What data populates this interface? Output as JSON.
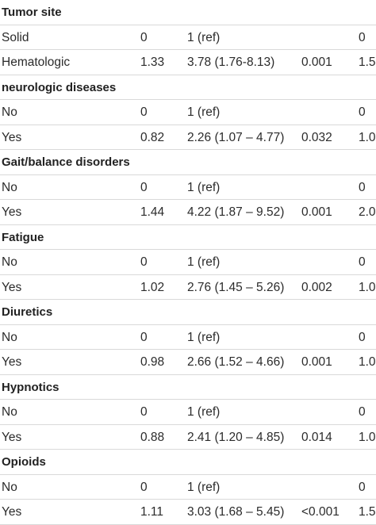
{
  "rows": [
    {
      "type": "header",
      "label": "Tumor site"
    },
    {
      "type": "data",
      "label": "Solid",
      "coef": "0",
      "or": "1 (ref)",
      "p": "",
      "extra": "0"
    },
    {
      "type": "data",
      "label": "Hematologic",
      "coef": "1.33",
      "or": "3.78 (1.76-8.13)",
      "p": "0.001",
      "extra": "1.5"
    },
    {
      "type": "header",
      "label": "neurologic diseases"
    },
    {
      "type": "data",
      "label": "No",
      "coef": "0",
      "or": "1 (ref)",
      "p": "",
      "extra": "0"
    },
    {
      "type": "data",
      "label": "Yes",
      "coef": "0.82",
      "or": "2.26 (1.07 – 4.77)",
      "p": "0.032",
      "extra": "1.0"
    },
    {
      "type": "header",
      "label": "Gait/balance disorders"
    },
    {
      "type": "data",
      "label": "No",
      "coef": "0",
      "or": "1 (ref)",
      "p": "",
      "extra": "0"
    },
    {
      "type": "data",
      "label": "Yes",
      "coef": "1.44",
      "or": "4.22 (1.87 – 9.52)",
      "p": "0.001",
      "extra": "2.0"
    },
    {
      "type": "header",
      "label": "Fatigue"
    },
    {
      "type": "data",
      "label": "No",
      "coef": "0",
      "or": "1 (ref)",
      "p": "",
      "extra": "0"
    },
    {
      "type": "data",
      "label": "Yes",
      "coef": "1.02",
      "or": "2.76 (1.45 – 5.26)",
      "p": "0.002",
      "extra": "1.0"
    },
    {
      "type": "header",
      "label": "Diuretics"
    },
    {
      "type": "data",
      "label": "No",
      "coef": "0",
      "or": "1 (ref)",
      "p": "",
      "extra": "0"
    },
    {
      "type": "data",
      "label": "Yes",
      "coef": "0.98",
      "or": "2.66 (1.52 – 4.66)",
      "p": "0.001",
      "extra": "1.0"
    },
    {
      "type": "header",
      "label": "Hypnotics"
    },
    {
      "type": "data",
      "label": "No",
      "coef": "0",
      "or": "1 (ref)",
      "p": "",
      "extra": "0"
    },
    {
      "type": "data",
      "label": "Yes",
      "coef": "0.88",
      "or": "2.41 (1.20 – 4.85)",
      "p": "0.014",
      "extra": "1.0"
    },
    {
      "type": "header",
      "label": "Opioids"
    },
    {
      "type": "data",
      "label": "No",
      "coef": "0",
      "or": "1 (ref)",
      "p": "",
      "extra": "0"
    },
    {
      "type": "data",
      "label": "Yes",
      "coef": "1.11",
      "or": "3.03 (1.68 – 5.45)",
      "p": "<0.001",
      "extra": "1.5"
    }
  ]
}
